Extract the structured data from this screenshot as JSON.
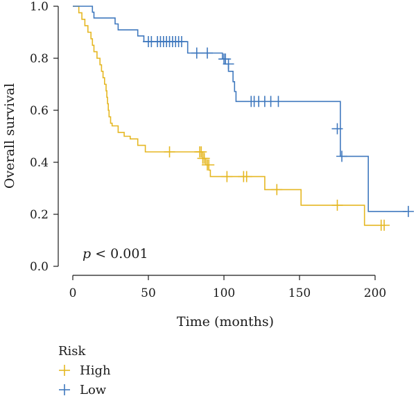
{
  "chart_data": {
    "type": "line",
    "subtype": "kaplan-meier",
    "xlabel": "Time (months)",
    "ylabel": "Overall survival",
    "xlim": [
      0,
      220
    ],
    "ylim": [
      0,
      1
    ],
    "x_ticks": [
      0,
      50,
      100,
      150,
      200
    ],
    "y_ticks": [
      0.0,
      0.2,
      0.4,
      0.6,
      0.8,
      1.0
    ],
    "x_tick_labels": [
      "0",
      "50",
      "100",
      "150",
      "200"
    ],
    "y_tick_labels": [
      "0.0",
      "0.2",
      "0.4",
      "0.6",
      "0.8",
      "1.0"
    ],
    "grid": false,
    "annotation": {
      "italic": "p",
      "rest": " < 0.001"
    },
    "legend": {
      "title": "Risk",
      "placement": "bottom-left"
    },
    "series": [
      {
        "name": "High",
        "color": "#E5B722",
        "steps": [
          [
            0,
            1.0
          ],
          [
            4,
            0.975
          ],
          [
            6,
            0.95
          ],
          [
            8,
            0.925
          ],
          [
            10,
            0.9
          ],
          [
            12,
            0.875
          ],
          [
            13,
            0.85
          ],
          [
            14,
            0.825
          ],
          [
            16,
            0.8
          ],
          [
            18,
            0.775
          ],
          [
            19,
            0.75
          ],
          [
            20,
            0.725
          ],
          [
            21,
            0.7
          ],
          [
            22,
            0.675
          ],
          [
            22.5,
            0.65
          ],
          [
            23,
            0.625
          ],
          [
            23.5,
            0.6
          ],
          [
            24,
            0.575
          ],
          [
            25,
            0.55
          ],
          [
            26,
            0.54
          ],
          [
            30,
            0.515
          ],
          [
            34,
            0.5
          ],
          [
            38,
            0.49
          ],
          [
            43,
            0.465
          ],
          [
            48,
            0.44
          ],
          [
            57,
            0.44
          ],
          [
            86,
            0.415
          ],
          [
            88,
            0.39
          ],
          [
            90,
            0.37
          ],
          [
            91,
            0.345
          ],
          [
            127,
            0.295
          ],
          [
            151,
            0.235
          ],
          [
            193,
            0.158
          ],
          [
            207,
            0.158
          ]
        ],
        "censor": [
          [
            64,
            0.44
          ],
          [
            84,
            0.44
          ],
          [
            85,
            0.44
          ],
          [
            86,
            0.415
          ],
          [
            87,
            0.415
          ],
          [
            89,
            0.39
          ],
          [
            90,
            0.39
          ],
          [
            102,
            0.345
          ],
          [
            113,
            0.345
          ],
          [
            115,
            0.345
          ],
          [
            135,
            0.295
          ],
          [
            175,
            0.235
          ],
          [
            204,
            0.158
          ],
          [
            206,
            0.158
          ]
        ]
      },
      {
        "name": "Low",
        "color": "#3F78BE",
        "steps": [
          [
            0,
            1.0
          ],
          [
            13,
            0.977
          ],
          [
            14,
            0.955
          ],
          [
            28,
            0.932
          ],
          [
            30,
            0.909
          ],
          [
            43,
            0.886
          ],
          [
            47,
            0.864
          ],
          [
            55,
            0.864
          ],
          [
            76,
            0.82
          ],
          [
            99,
            0.797
          ],
          [
            101,
            0.778
          ],
          [
            103,
            0.75
          ],
          [
            106,
            0.71
          ],
          [
            107,
            0.672
          ],
          [
            108,
            0.634
          ],
          [
            165,
            0.634
          ],
          [
            177,
            0.423
          ],
          [
            195,
            0.423
          ],
          [
            195.5,
            0.211
          ],
          [
            221,
            0.211
          ]
        ],
        "censor": [
          [
            50,
            0.864
          ],
          [
            52,
            0.864
          ],
          [
            56,
            0.864
          ],
          [
            58,
            0.864
          ],
          [
            60,
            0.864
          ],
          [
            62,
            0.864
          ],
          [
            64,
            0.864
          ],
          [
            66,
            0.864
          ],
          [
            68,
            0.864
          ],
          [
            70,
            0.864
          ],
          [
            72,
            0.864
          ],
          [
            82,
            0.82
          ],
          [
            89,
            0.82
          ],
          [
            100,
            0.797
          ],
          [
            101,
            0.797
          ],
          [
            103,
            0.778
          ],
          [
            118,
            0.634
          ],
          [
            120,
            0.634
          ],
          [
            123,
            0.634
          ],
          [
            127,
            0.634
          ],
          [
            131,
            0.634
          ],
          [
            136,
            0.634
          ],
          [
            175,
            0.529
          ],
          [
            178,
            0.423
          ],
          [
            222,
            0.211
          ]
        ]
      }
    ]
  }
}
